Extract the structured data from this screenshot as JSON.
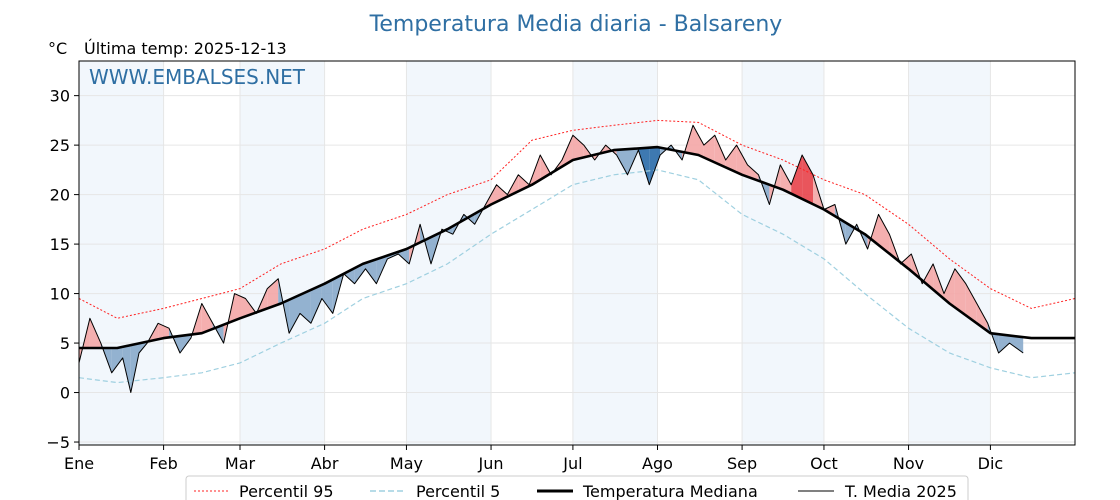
{
  "chart_data": {
    "type": "line",
    "title": "Temperatura Media diaria - Balsareny",
    "unit_label": "°C",
    "last_update": "Última temp: 2025-12-13",
    "watermark": "WWW.EMBALSES.NET",
    "ylim": [
      -5.3,
      33.5
    ],
    "yticks": [
      -5,
      0,
      5,
      10,
      15,
      20,
      25,
      30
    ],
    "ytick_labels": [
      "−5",
      "0",
      "5",
      "10",
      "15",
      "20",
      "25",
      "30"
    ],
    "xticks": [
      "Ene",
      "Feb",
      "Mar",
      "Abr",
      "May",
      "Jun",
      "Jul",
      "Ago",
      "Sep",
      "Oct",
      "Nov",
      "Dic"
    ],
    "month_start_days": [
      1,
      32,
      60,
      91,
      121,
      152,
      182,
      213,
      244,
      274,
      305,
      335
    ],
    "xlim": [
      1,
      366
    ],
    "grid": true,
    "colors": {
      "title": "#2f6fa3",
      "p95": "#ff2020",
      "p5": "#9fd0e0",
      "median": "#000000",
      "year": "#000000",
      "above_fill": "#f4a6a6",
      "above_strong": "#e8434a",
      "below_fill": "#88aacb",
      "below_strong": "#2a6aa8",
      "month_shade": "#f2f7fc"
    },
    "legend_position": "bottom-center",
    "series": [
      {
        "name": "Percentil 95",
        "style": "dotted-red",
        "x": [
          1,
          15,
          32,
          46,
          60,
          75,
          91,
          105,
          121,
          136,
          152,
          167,
          182,
          197,
          213,
          228,
          244,
          259,
          274,
          289,
          305,
          320,
          335,
          350,
          366
        ],
        "y": [
          9.5,
          7.5,
          8.5,
          9.5,
          10.5,
          13,
          14.5,
          16.5,
          18,
          20,
          21.5,
          25.5,
          26.5,
          27,
          27.5,
          27.3,
          25,
          23.5,
          21.5,
          20,
          17,
          13.5,
          10.5,
          8.5,
          9.5
        ]
      },
      {
        "name": "Percentil 5",
        "style": "dashed-lightblue",
        "x": [
          1,
          15,
          32,
          46,
          60,
          75,
          91,
          105,
          121,
          136,
          152,
          167,
          182,
          197,
          213,
          228,
          244,
          259,
          274,
          289,
          305,
          320,
          335,
          350,
          366
        ],
        "y": [
          1.5,
          1,
          1.5,
          2,
          3,
          5,
          7,
          9.5,
          11,
          13,
          16,
          18.5,
          21,
          22,
          22.5,
          21.5,
          18,
          16,
          13.5,
          10,
          6.5,
          4,
          2.5,
          1.5,
          2
        ]
      },
      {
        "name": "Temperatura Mediana",
        "style": "thick-black",
        "x": [
          1,
          15,
          32,
          46,
          60,
          75,
          91,
          105,
          121,
          136,
          152,
          167,
          182,
          197,
          213,
          228,
          244,
          259,
          274,
          289,
          305,
          320,
          335,
          350,
          366
        ],
        "y": [
          4.5,
          4.5,
          5.5,
          6,
          7.5,
          9,
          11,
          13,
          14.5,
          16.5,
          19,
          21,
          23.5,
          24.5,
          24.8,
          24,
          22,
          20.5,
          18.5,
          16,
          12.5,
          9,
          6,
          5.5,
          5.5
        ]
      },
      {
        "name": "T. Media 2025",
        "style": "thin-black",
        "x": [
          1,
          5,
          9,
          13,
          17,
          20,
          23,
          26,
          30,
          34,
          38,
          42,
          46,
          50,
          54,
          58,
          62,
          66,
          70,
          74,
          78,
          82,
          86,
          90,
          94,
          98,
          102,
          106,
          110,
          114,
          118,
          122,
          126,
          130,
          134,
          138,
          142,
          146,
          150,
          154,
          158,
          162,
          166,
          170,
          174,
          178,
          182,
          186,
          190,
          194,
          198,
          202,
          206,
          210,
          214,
          218,
          222,
          226,
          230,
          234,
          238,
          242,
          246,
          250,
          254,
          258,
          262,
          266,
          270,
          274,
          278,
          282,
          286,
          290,
          294,
          298,
          302,
          306,
          310,
          314,
          318,
          322,
          326,
          330,
          334,
          338,
          342,
          347
        ],
        "y": [
          3,
          7.5,
          5,
          2,
          3.5,
          0,
          4,
          5,
          7,
          6.5,
          4,
          5.5,
          9,
          7,
          5,
          10,
          9.5,
          8,
          10.5,
          11.5,
          6,
          8,
          7,
          9.5,
          8,
          12,
          11,
          12.5,
          11,
          13.5,
          14,
          13,
          17,
          13,
          16.5,
          16,
          18,
          17,
          19,
          21,
          20,
          22,
          21,
          24,
          22,
          23.5,
          26,
          25,
          23.5,
          25,
          24,
          22,
          24.5,
          21,
          24,
          25,
          23.5,
          27,
          25,
          26,
          23.5,
          25,
          23,
          22,
          19,
          23,
          21,
          24,
          22,
          18.5,
          19,
          15,
          17,
          14.5,
          18,
          16,
          13,
          14,
          11,
          13,
          10,
          12.5,
          11,
          9,
          7,
          4,
          5,
          4
        ]
      }
    ]
  },
  "legend": {
    "p95": "Percentil 95",
    "p5": "Percentil 5",
    "median": "Temperatura Mediana",
    "year": "T. Media 2025"
  }
}
